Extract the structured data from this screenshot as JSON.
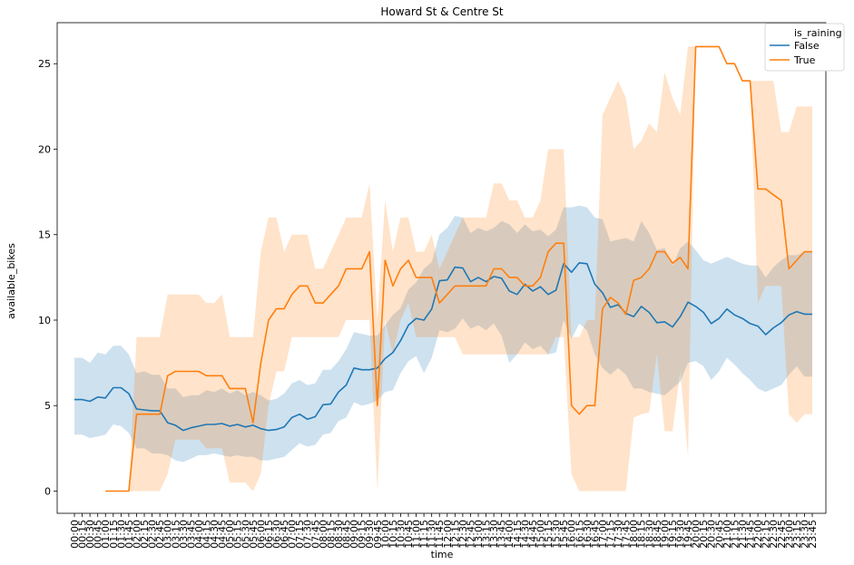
{
  "chart_data": {
    "type": "line",
    "title": "Howard St & Centre St",
    "xlabel": "time",
    "ylabel": "available_bikes",
    "ylim": [
      -1.3,
      27.4
    ],
    "yticks": [
      0,
      5,
      10,
      15,
      20,
      25
    ],
    "grid": false,
    "legend_position": "top-right",
    "legend_title": "is_raining",
    "x": [
      "00:00",
      "00:15",
      "00:30",
      "00:45",
      "01:00",
      "01:15",
      "01:30",
      "01:45",
      "02:00",
      "02:15",
      "02:30",
      "02:45",
      "03:00",
      "03:15",
      "03:30",
      "03:45",
      "04:00",
      "04:15",
      "04:30",
      "04:45",
      "05:00",
      "05:15",
      "05:30",
      "05:45",
      "06:00",
      "06:15",
      "06:30",
      "06:45",
      "07:00",
      "07:15",
      "07:30",
      "07:45",
      "08:00",
      "08:15",
      "08:30",
      "08:45",
      "09:00",
      "09:15",
      "09:30",
      "09:45",
      "10:00",
      "10:15",
      "10:30",
      "10:45",
      "11:00",
      "11:15",
      "11:30",
      "11:45",
      "12:00",
      "12:15",
      "12:30",
      "12:45",
      "13:00",
      "13:15",
      "13:30",
      "13:45",
      "14:00",
      "14:15",
      "14:30",
      "14:45",
      "15:00",
      "15:15",
      "15:30",
      "15:45",
      "16:00",
      "16:15",
      "16:30",
      "16:45",
      "17:00",
      "17:15",
      "17:30",
      "17:45",
      "18:00",
      "18:15",
      "18:30",
      "18:45",
      "19:00",
      "19:15",
      "19:30",
      "19:45",
      "20:00",
      "20:15",
      "20:30",
      "20:45",
      "21:00",
      "21:15",
      "21:30",
      "21:45",
      "22:00",
      "22:15",
      "22:30",
      "22:45",
      "23:00",
      "23:15",
      "23:30",
      "23:45"
    ],
    "series": [
      {
        "name": "False",
        "color": "#1f77b4",
        "band_color": "#aecde6",
        "values": [
          5.35,
          5.35,
          5.25,
          5.5,
          5.45,
          6.05,
          6.05,
          5.7,
          4.8,
          4.75,
          4.7,
          4.7,
          4.0,
          3.85,
          3.55,
          3.7,
          3.8,
          3.9,
          3.9,
          3.95,
          3.8,
          3.9,
          3.75,
          3.85,
          3.65,
          3.55,
          3.6,
          3.75,
          4.3,
          4.5,
          4.2,
          4.35,
          5.05,
          5.1,
          5.8,
          6.2,
          7.2,
          7.1,
          7.1,
          7.2,
          7.75,
          8.1,
          8.8,
          9.7,
          10.1,
          10.0,
          10.65,
          12.3,
          12.35,
          13.1,
          13.05,
          12.25,
          12.5,
          12.25,
          12.55,
          12.45,
          11.7,
          11.5,
          12.1,
          11.7,
          11.95,
          11.5,
          11.75,
          13.3,
          12.8,
          13.35,
          13.3,
          12.1,
          11.6,
          10.75,
          10.9,
          10.4,
          10.2,
          10.8,
          10.45,
          9.85,
          9.9,
          9.6,
          10.2,
          11.05,
          10.8,
          10.45,
          9.8,
          10.1,
          10.65,
          10.3,
          10.1,
          9.8,
          9.65,
          9.15,
          9.55,
          9.85,
          10.3,
          10.5,
          10.35,
          10.35
        ],
        "lower": [
          3.3,
          3.3,
          3.1,
          3.2,
          3.3,
          3.9,
          3.8,
          3.4,
          2.5,
          2.5,
          2.2,
          2.2,
          2.1,
          1.8,
          1.7,
          1.9,
          2.1,
          2.1,
          2.2,
          2.1,
          2.0,
          2.1,
          2.0,
          2.0,
          1.8,
          1.8,
          1.9,
          2.0,
          2.4,
          2.8,
          2.6,
          2.7,
          3.3,
          3.4,
          4.1,
          4.3,
          5.2,
          5.0,
          5.1,
          5.3,
          5.8,
          5.9,
          6.9,
          7.6,
          7.9,
          6.9,
          7.8,
          9.4,
          9.3,
          9.5,
          10.1,
          9.5,
          9.7,
          9.4,
          9.8,
          9.1,
          7.5,
          8.0,
          8.7,
          8.3,
          8.5,
          8.0,
          8.1,
          10.0,
          8.9,
          9.8,
          9.4,
          8.0,
          7.2,
          6.8,
          7.2,
          6.8,
          6.0,
          6.0,
          5.8,
          5.7,
          5.6,
          6.0,
          6.4,
          7.5,
          7.6,
          7.3,
          6.5,
          7.0,
          7.8,
          7.4,
          6.9,
          6.5,
          6.0,
          5.8,
          6.0,
          6.2,
          6.8,
          7.3,
          6.7,
          6.7
        ],
        "upper": [
          7.8,
          7.8,
          7.5,
          8.1,
          8.0,
          8.5,
          8.5,
          8.0,
          6.9,
          7.0,
          6.8,
          6.8,
          6.0,
          6.0,
          5.5,
          5.6,
          5.6,
          5.9,
          5.8,
          6.0,
          5.7,
          5.9,
          5.6,
          5.8,
          5.6,
          5.3,
          5.4,
          5.7,
          6.3,
          6.5,
          6.2,
          6.3,
          7.1,
          7.1,
          7.6,
          8.3,
          9.3,
          9.2,
          9.1,
          9.1,
          9.7,
          10.3,
          10.7,
          11.8,
          12.2,
          13.0,
          13.4,
          15.0,
          15.4,
          16.1,
          16.0,
          15.1,
          15.4,
          15.2,
          15.4,
          15.8,
          15.6,
          15.1,
          15.6,
          15.2,
          15.3,
          14.9,
          15.3,
          16.6,
          16.6,
          16.7,
          16.6,
          16.0,
          15.9,
          14.6,
          14.7,
          14.8,
          14.6,
          15.8,
          15.1,
          14.1,
          14.2,
          13.2,
          14.2,
          14.6,
          14.1,
          13.5,
          13.3,
          13.5,
          13.7,
          13.5,
          13.3,
          13.2,
          13.2,
          12.5,
          13.1,
          13.5,
          13.8,
          13.8,
          14.0,
          14.0
        ]
      },
      {
        "name": "True",
        "color": "#ff7f0e",
        "band_color": "#ffd7b5",
        "values": [
          null,
          null,
          null,
          null,
          0,
          0,
          0,
          0,
          4.5,
          4.5,
          4.5,
          4.5,
          6.75,
          7.0,
          7.0,
          7.0,
          7.0,
          6.75,
          6.75,
          6.75,
          6.0,
          6.0,
          6.0,
          4.0,
          7.5,
          10.0,
          10.67,
          10.67,
          11.5,
          12.0,
          12.0,
          11.0,
          11.0,
          11.5,
          12.0,
          13.0,
          13.0,
          13.0,
          14.0,
          5.0,
          13.5,
          12.0,
          13.0,
          13.5,
          12.5,
          12.5,
          12.5,
          11.0,
          11.5,
          12.0,
          12.0,
          12.0,
          12.0,
          12.0,
          13.0,
          13.0,
          12.5,
          12.5,
          12.0,
          12.0,
          12.5,
          14.0,
          14.5,
          14.5,
          5.0,
          4.5,
          5.0,
          5.0,
          10.67,
          11.33,
          11.0,
          10.33,
          12.33,
          12.5,
          13.0,
          14.0,
          14.0,
          13.33,
          13.67,
          13.0,
          26.0,
          26.0,
          26.0,
          26.0,
          25.0,
          25.0,
          24.0,
          24.0,
          17.67,
          17.67,
          17.33,
          17.0,
          13.0,
          13.5,
          14.0,
          14.0
        ],
        "lower": [
          null,
          null,
          null,
          null,
          0,
          0,
          0,
          0,
          0,
          0,
          0,
          0,
          1.0,
          3.0,
          3.0,
          3.0,
          3.0,
          2.5,
          2.5,
          2.5,
          0.5,
          0.5,
          0.5,
          0,
          1.0,
          5.0,
          7.0,
          7.0,
          9.0,
          9.0,
          9.0,
          9.0,
          9.0,
          9.0,
          9.0,
          10.0,
          10.0,
          10.0,
          10.0,
          0,
          10.0,
          8.0,
          10.0,
          11.0,
          9.0,
          9.0,
          9.0,
          9.0,
          9.0,
          9.0,
          8.0,
          8.0,
          8.0,
          8.0,
          8.0,
          8.0,
          8.0,
          8.0,
          8.0,
          8.0,
          8.0,
          8.0,
          9.0,
          9.0,
          1.0,
          0,
          0,
          0,
          0,
          0,
          0,
          0,
          4.3,
          4.5,
          4.6,
          8.0,
          3.5,
          3.5,
          7.0,
          2.0,
          26.0,
          26.0,
          26.0,
          26.0,
          25.0,
          25.0,
          24.0,
          24.0,
          11.0,
          12.0,
          12.0,
          12.0,
          4.5,
          4.0,
          4.5,
          4.5
        ],
        "upper": [
          null,
          null,
          null,
          null,
          0,
          0,
          0,
          0,
          9.0,
          9.0,
          9.0,
          9.0,
          11.5,
          11.5,
          11.5,
          11.5,
          11.5,
          11.0,
          11.0,
          11.5,
          9.0,
          9.0,
          9.0,
          9.0,
          14.0,
          16.0,
          16.0,
          14.0,
          15.0,
          15.0,
          15.0,
          13.0,
          13.0,
          14.0,
          15.0,
          16.0,
          16.0,
          16.0,
          18.0,
          10.0,
          17.0,
          14.0,
          16.0,
          16.0,
          14.0,
          14.0,
          15.0,
          13.0,
          14.0,
          15.0,
          16.0,
          16.0,
          16.0,
          16.0,
          18.0,
          18.0,
          17.0,
          17.0,
          16.0,
          16.0,
          17.0,
          20.0,
          20.0,
          20.0,
          9.0,
          9.0,
          10.0,
          10.0,
          22.0,
          23.0,
          24.0,
          23.0,
          20.0,
          20.5,
          21.5,
          21.0,
          24.5,
          23.0,
          22.0,
          26.0,
          26.0,
          26.0,
          26.0,
          26.0,
          25.0,
          25.0,
          24.0,
          24.0,
          24.0,
          24.0,
          24.0,
          21.0,
          21.0,
          22.5,
          22.5,
          22.5
        ]
      }
    ]
  }
}
